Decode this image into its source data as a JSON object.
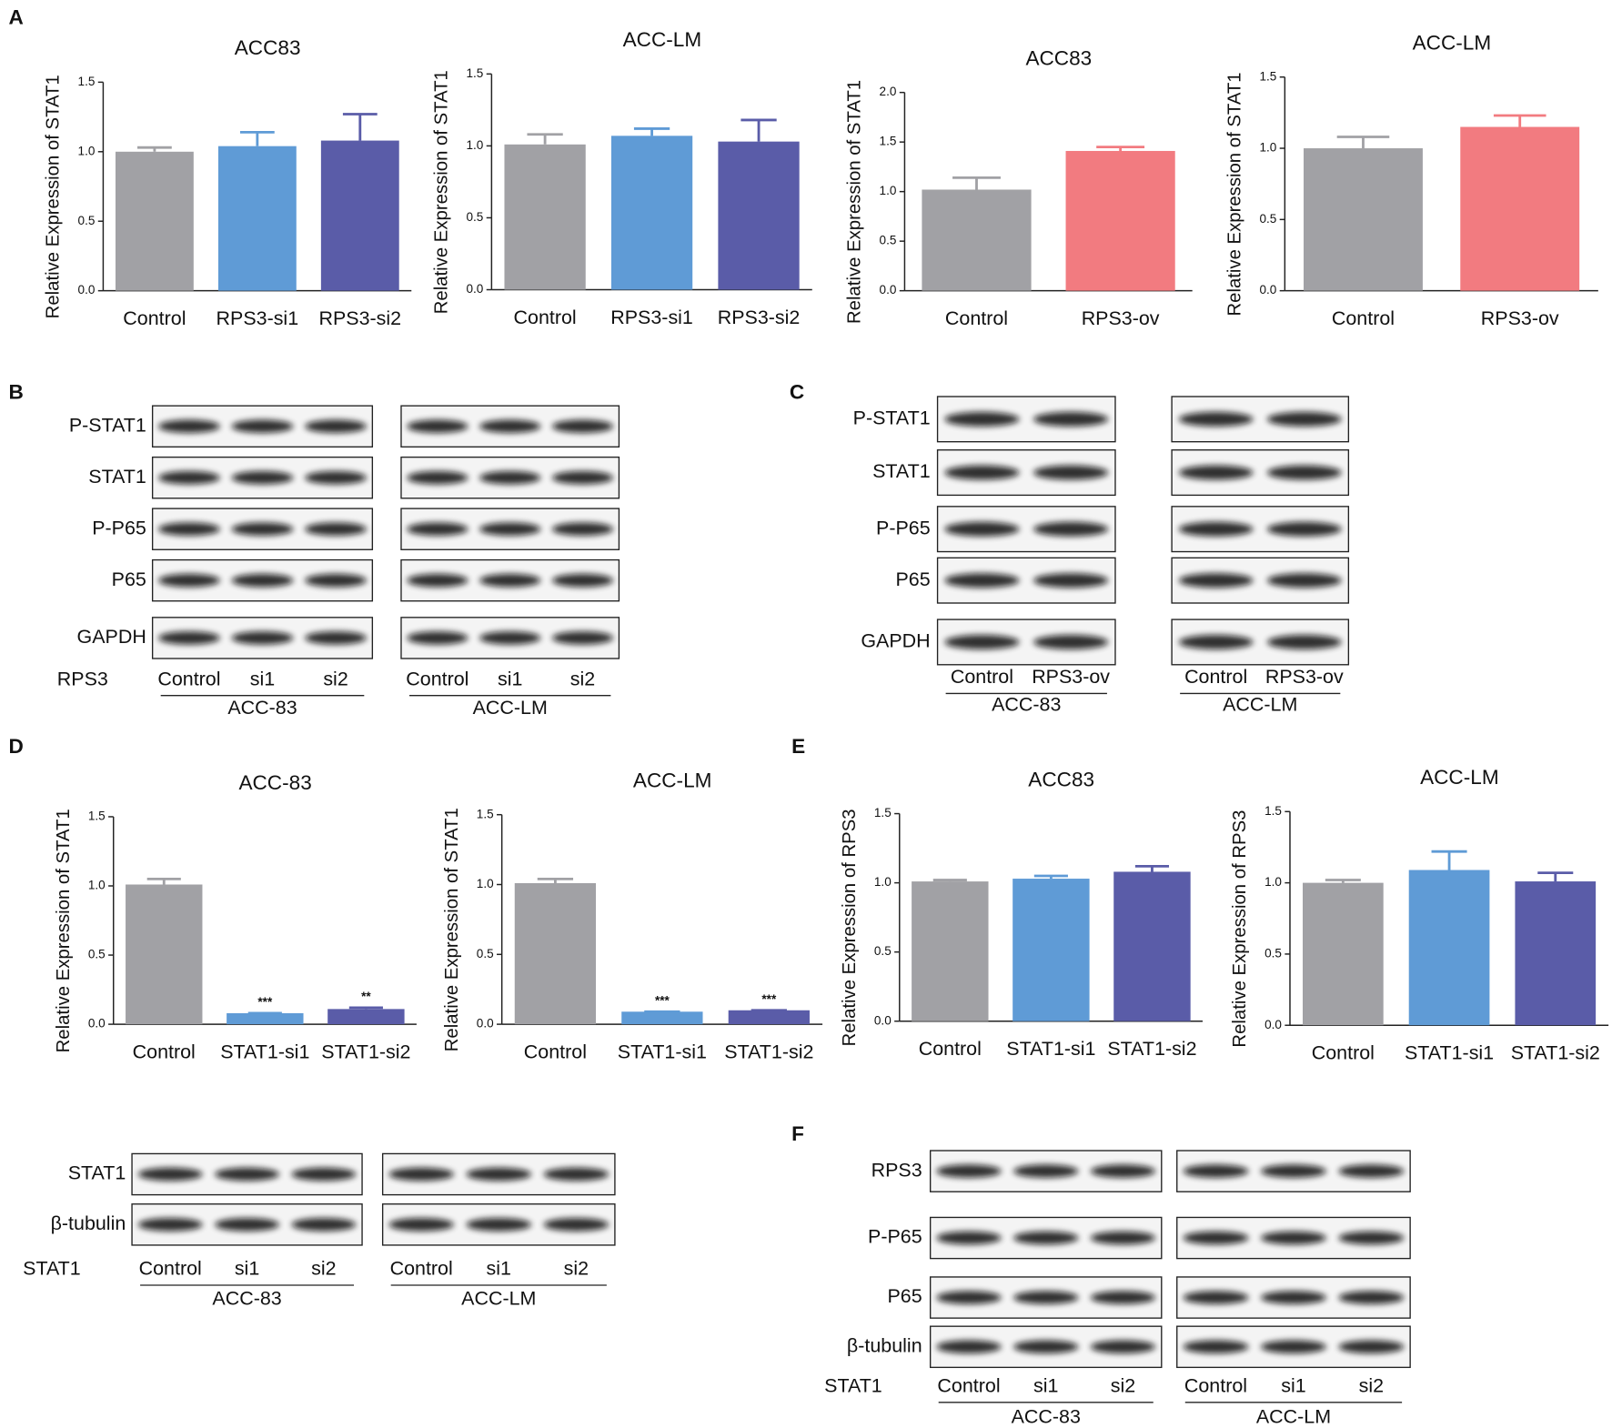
{
  "panel_labels": [
    "A",
    "B",
    "C",
    "D",
    "E",
    "F"
  ],
  "chart_data": [
    {
      "type": "bar",
      "title": "ACC83",
      "y_label": "Relative Expression of STAT1",
      "categories": [
        "Control",
        "RPS3-si1",
        "RPS3-si2"
      ],
      "values": [
        1.0,
        1.04,
        1.08
      ],
      "errors": [
        0.03,
        0.1,
        0.19
      ],
      "colors": [
        "#a1a1a5",
        "#5f9bd6",
        "#5a5ca8"
      ],
      "ylim": [
        0,
        1.5
      ],
      "yticks": [
        {
          "value": 0,
          "label": "0.0"
        },
        {
          "value": 0.5,
          "label": "0.5"
        },
        {
          "value": 1,
          "label": "1.0"
        },
        {
          "value": 1.5,
          "label": "1.5"
        }
      ]
    },
    {
      "type": "bar",
      "title": "ACC-LM",
      "y_label": "Relative Expression of STAT1",
      "categories": [
        "Control",
        "RPS3-si1",
        "RPS3-si2"
      ],
      "values": [
        1.01,
        1.07,
        1.03
      ],
      "errors": [
        0.07,
        0.05,
        0.15
      ],
      "colors": [
        "#a1a1a5",
        "#5f9bd6",
        "#5a5ca8"
      ],
      "ylim": [
        0,
        1.5
      ],
      "yticks": [
        {
          "value": 0,
          "label": "0.0"
        },
        {
          "value": 0.5,
          "label": "0.5"
        },
        {
          "value": 1,
          "label": "1.0"
        },
        {
          "value": 1.5,
          "label": "1.5"
        }
      ]
    },
    {
      "type": "bar",
      "title": "ACC83",
      "y_label": "Relative Expression of STAT1",
      "categories": [
        "Control",
        "RPS3-ov"
      ],
      "values": [
        1.02,
        1.41
      ],
      "errors": [
        0.12,
        0.04
      ],
      "colors": [
        "#a1a1a5",
        "#f27b80"
      ],
      "ylim": [
        0,
        2
      ],
      "yticks": [
        {
          "value": 0,
          "label": "0.0"
        },
        {
          "value": 0.5,
          "label": "0.5"
        },
        {
          "value": 1,
          "label": "1.0"
        },
        {
          "value": 1.5,
          "label": "1.5"
        },
        {
          "value": 2,
          "label": "2.0"
        }
      ]
    },
    {
      "type": "bar",
      "title": "ACC-LM",
      "y_label": "Relative Expression of STAT1",
      "categories": [
        "Control",
        "RPS3-ov"
      ],
      "values": [
        1.0,
        1.15
      ],
      "errors": [
        0.08,
        0.08
      ],
      "colors": [
        "#a1a1a5",
        "#f27b80"
      ],
      "ylim": [
        0,
        1.5
      ],
      "yticks": [
        {
          "value": 0,
          "label": "0.0"
        },
        {
          "value": 0.5,
          "label": "0.5"
        },
        {
          "value": 1,
          "label": "1.0"
        },
        {
          "value": 1.5,
          "label": "1.5"
        }
      ]
    },
    {
      "type": "bar",
      "title": "ACC-83",
      "y_label": "Relative Expression of STAT1",
      "categories": [
        "Control",
        "STAT1-si1",
        "STAT1-si2"
      ],
      "values": [
        1.01,
        0.08,
        0.11
      ],
      "errors": [
        0.04,
        0.0,
        0.01
      ],
      "annotations": [
        null,
        "***",
        "**"
      ],
      "colors": [
        "#a1a1a5",
        "#5f9bd6",
        "#5a5ca8"
      ],
      "ylim": [
        0,
        1.5
      ],
      "yticks": [
        {
          "value": 0,
          "label": "0.0"
        },
        {
          "value": 0.5,
          "label": "0.5"
        },
        {
          "value": 1,
          "label": "1.0"
        },
        {
          "value": 1.5,
          "label": "1.5"
        }
      ]
    },
    {
      "type": "bar",
      "title": "ACC-LM",
      "y_label": "Relative Expression of STAT1",
      "categories": [
        "Control",
        "STAT1-si1",
        "STAT1-si2"
      ],
      "values": [
        1.01,
        0.09,
        0.1
      ],
      "errors": [
        0.03,
        0.0,
        0.0
      ],
      "annotations": [
        null,
        "***",
        "***"
      ],
      "colors": [
        "#a1a1a5",
        "#5f9bd6",
        "#5a5ca8"
      ],
      "ylim": [
        0,
        1.5
      ],
      "yticks": [
        {
          "value": 0,
          "label": "0.0"
        },
        {
          "value": 0.5,
          "label": "0.5"
        },
        {
          "value": 1,
          "label": "1.0"
        },
        {
          "value": 1.5,
          "label": "1.5"
        }
      ]
    },
    {
      "type": "bar",
      "title": "ACC83",
      "y_label": "Relative Expression of RPS3",
      "categories": [
        "Control",
        "STAT1-si1",
        "STAT1-si2"
      ],
      "values": [
        1.01,
        1.03,
        1.08
      ],
      "errors": [
        0.01,
        0.02,
        0.04
      ],
      "colors": [
        "#a1a1a5",
        "#5f9bd6",
        "#5a5ca8"
      ],
      "ylim": [
        0,
        1.5
      ],
      "yticks": [
        {
          "value": 0,
          "label": "0.0"
        },
        {
          "value": 0.5,
          "label": "0.5"
        },
        {
          "value": 1,
          "label": "1.0"
        },
        {
          "value": 1.5,
          "label": "1.5"
        }
      ]
    },
    {
      "type": "bar",
      "title": "ACC-LM",
      "y_label": "Relative Expression of RPS3",
      "categories": [
        "Control",
        "STAT1-si1",
        "STAT1-si2"
      ],
      "values": [
        1.0,
        1.09,
        1.01
      ],
      "errors": [
        0.02,
        0.13,
        0.06
      ],
      "colors": [
        "#a1a1a5",
        "#5f9bd6",
        "#5a5ca8"
      ],
      "ylim": [
        0,
        1.5
      ],
      "yticks": [
        {
          "value": 0,
          "label": "0.0"
        },
        {
          "value": 0.5,
          "label": "0.5"
        },
        {
          "value": 1,
          "label": "1.0"
        },
        {
          "value": 1.5,
          "label": "1.5"
        }
      ]
    }
  ],
  "blots": [
    {
      "rows": [
        "P-STAT1",
        "STAT1",
        "P-P65",
        "P65",
        "GAPDH"
      ],
      "treatment": "RPS3",
      "groups": [
        {
          "lanes": [
            "Control",
            "si1",
            "si2"
          ],
          "cell_line": "ACC-83"
        },
        {
          "lanes": [
            "Control",
            "si1",
            "si2"
          ],
          "cell_line": "ACC-LM"
        }
      ]
    },
    {
      "rows": [
        "P-STAT1",
        "STAT1",
        "P-P65",
        "P65",
        "GAPDH"
      ],
      "groups": [
        {
          "lanes": [
            "Control",
            "RPS3-ov"
          ],
          "cell_line": "ACC-83"
        },
        {
          "lanes": [
            "Control",
            "RPS3-ov"
          ],
          "cell_line": "ACC-LM"
        }
      ]
    },
    {
      "rows": [
        "STAT1",
        "β-tubulin"
      ],
      "treatment": "STAT1",
      "groups": [
        {
          "lanes": [
            "Control",
            "si1",
            "si2"
          ],
          "cell_line": "ACC-83"
        },
        {
          "lanes": [
            "Control",
            "si1",
            "si2"
          ],
          "cell_line": "ACC-LM"
        }
      ]
    },
    {
      "rows": [
        "RPS3",
        "P-P65",
        "P65",
        "β-tubulin"
      ],
      "treatment": "STAT1",
      "groups": [
        {
          "lanes": [
            "Control",
            "si1",
            "si2"
          ],
          "cell_line": "ACC-83"
        },
        {
          "lanes": [
            "Control",
            "si1",
            "si2"
          ],
          "cell_line": "ACC-LM"
        }
      ]
    }
  ]
}
